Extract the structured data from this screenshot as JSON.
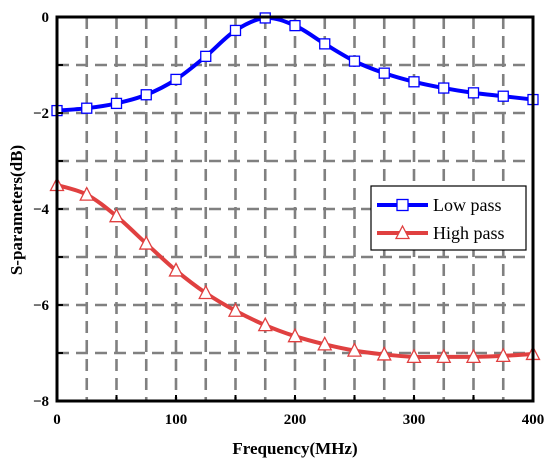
{
  "chart_data": {
    "type": "line",
    "xlabel": "Frequency(MHz)",
    "ylabel": "S-parameters(dB)",
    "xlim": [
      0,
      400
    ],
    "ylim": [
      -8,
      0
    ],
    "x_ticks": [
      0,
      100,
      200,
      300,
      400
    ],
    "y_ticks": [
      0,
      -2,
      -4,
      -6,
      -8
    ],
    "x_tick_labels": [
      "0",
      "100",
      "200",
      "300",
      "400"
    ],
    "y_tick_labels": [
      "0",
      "−2",
      "−4",
      "−6",
      "−8"
    ],
    "grid": true,
    "legend_position": "right",
    "series": [
      {
        "name": "Low pass",
        "color": "#0000ff",
        "marker": "square",
        "x": [
          0,
          25,
          50,
          75,
          100,
          125,
          150,
          175,
          200,
          225,
          250,
          275,
          300,
          325,
          350,
          375,
          400
        ],
        "values": [
          -1.95,
          -1.9,
          -1.8,
          -1.62,
          -1.3,
          -0.82,
          -0.28,
          -0.02,
          -0.18,
          -0.56,
          -0.92,
          -1.17,
          -1.35,
          -1.48,
          -1.58,
          -1.65,
          -1.72
        ]
      },
      {
        "name": "High pass",
        "color": "#e04040",
        "marker": "triangle",
        "x": [
          0,
          25,
          50,
          75,
          100,
          125,
          150,
          175,
          200,
          225,
          250,
          275,
          300,
          325,
          350,
          375,
          400
        ],
        "values": [
          -3.5,
          -3.7,
          -4.15,
          -4.72,
          -5.28,
          -5.75,
          -6.12,
          -6.42,
          -6.65,
          -6.82,
          -6.95,
          -7.03,
          -7.08,
          -7.08,
          -7.08,
          -7.06,
          -7.02
        ]
      }
    ]
  }
}
